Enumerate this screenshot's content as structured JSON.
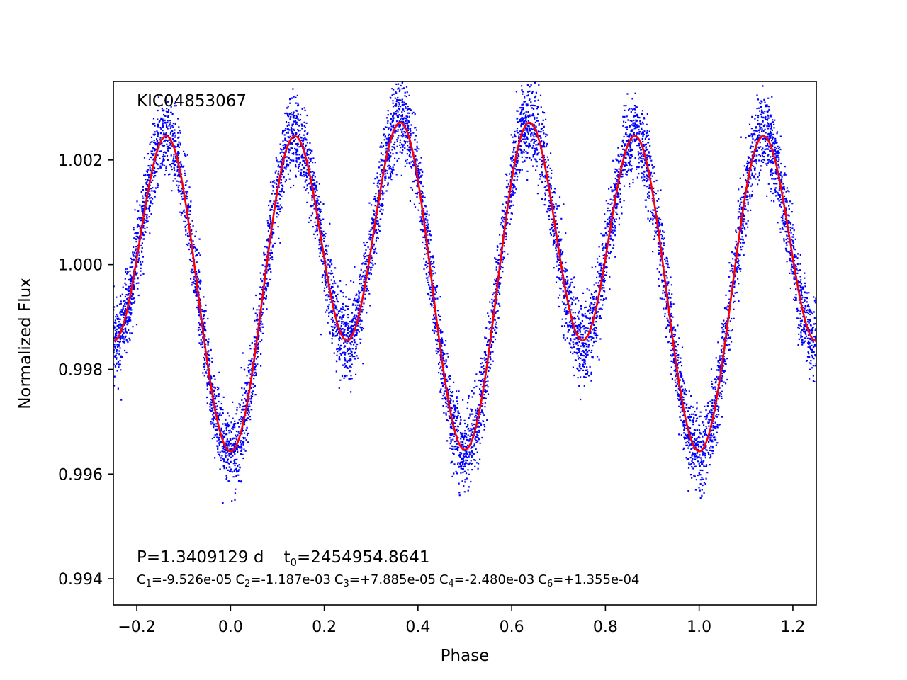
{
  "chart_data": {
    "type": "scatter",
    "title": "",
    "xlabel": "Phase",
    "ylabel": "Normalized Flux",
    "xlim": [
      -0.25,
      1.25
    ],
    "ylim": [
      0.9935,
      1.0035
    ],
    "x_ticks": [
      -0.2,
      0.0,
      0.2,
      0.4,
      0.6,
      0.8,
      1.0,
      1.2
    ],
    "x_tick_labels": [
      "−0.2",
      "0.0",
      "0.2",
      "0.4",
      "0.6",
      "0.8",
      "1.0",
      "1.2"
    ],
    "y_ticks": [
      0.994,
      0.996,
      0.998,
      1.0,
      1.002
    ],
    "y_tick_labels": [
      "0.994",
      "0.996",
      "0.998",
      "1.000",
      "1.002"
    ],
    "grid": false,
    "annotations": {
      "star_id": "KIC04853067",
      "period": "P=1.3409129 d",
      "epoch_prefix": "t",
      "epoch_sub": "0",
      "epoch_value": "=2454954.8641",
      "coefficients": [
        {
          "name": "C",
          "sub": "1",
          "value": "=-9.526e-05"
        },
        {
          "name": "C",
          "sub": "2",
          "value": "=-1.187e-03"
        },
        {
          "name": "C",
          "sub": "3",
          "value": "=+7.885e-05"
        },
        {
          "name": "C",
          "sub": "4",
          "value": "=-2.480e-03"
        },
        {
          "name": "C",
          "sub": "6",
          "value": "=+1.355e-04"
        }
      ]
    },
    "series": [
      {
        "kind": "scatter",
        "color": "#0000ff",
        "model": "fourier",
        "offset": 0.99998,
        "sigma": 0.00038,
        "count": 9000
      },
      {
        "kind": "line",
        "color": "#ff0000",
        "model": "fourier",
        "offset": 0.99998
      }
    ]
  }
}
